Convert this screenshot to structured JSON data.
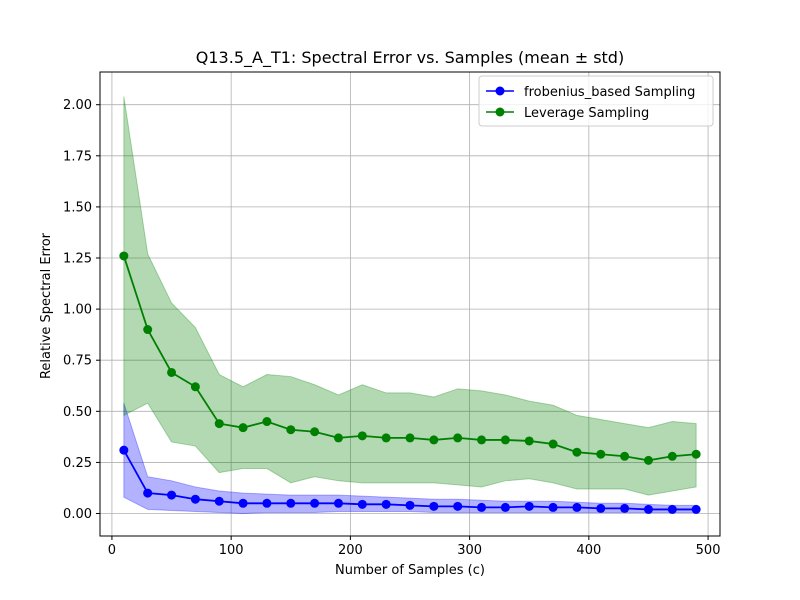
{
  "chart_data": {
    "type": "line",
    "title": "Q13.5_A_T1: Spectral Error vs. Samples (mean ± std)",
    "xlabel": "Number of Samples (c)",
    "ylabel": "Relative Spectral Error",
    "xlim": [
      -10,
      510
    ],
    "ylim": [
      -0.11,
      2.16
    ],
    "xticks": [
      0,
      100,
      200,
      300,
      400,
      500
    ],
    "yticks": [
      0.0,
      0.25,
      0.5,
      0.75,
      1.0,
      1.25,
      1.5,
      1.75,
      2.0
    ],
    "xtick_labels": [
      "0",
      "100",
      "200",
      "300",
      "400",
      "500"
    ],
    "ytick_labels": [
      "0.00",
      "0.25",
      "0.50",
      "0.75",
      "1.00",
      "1.25",
      "1.50",
      "1.75",
      "2.00"
    ],
    "grid": true,
    "legend_position": "top-right",
    "x": [
      10,
      30,
      50,
      70,
      90,
      110,
      130,
      150,
      170,
      190,
      210,
      230,
      250,
      270,
      290,
      310,
      330,
      350,
      370,
      390,
      410,
      430,
      450,
      470,
      490
    ],
    "series": [
      {
        "name": "frobenius_based Sampling",
        "color": "#0000ff",
        "fill_color": "#0000ff",
        "mean": [
          0.31,
          0.1,
          0.09,
          0.07,
          0.06,
          0.05,
          0.05,
          0.05,
          0.05,
          0.05,
          0.045,
          0.045,
          0.04,
          0.035,
          0.035,
          0.03,
          0.03,
          0.035,
          0.03,
          0.03,
          0.025,
          0.025,
          0.02,
          0.02,
          0.02
        ],
        "lower": [
          0.08,
          0.02,
          0.015,
          0.01,
          0.005,
          0.0,
          0.005,
          0.005,
          0.005,
          0.01,
          0.01,
          0.01,
          0.01,
          0.005,
          0.005,
          0.005,
          0.005,
          0.005,
          0.005,
          0.005,
          0.005,
          0.005,
          0.005,
          0.005,
          0.005
        ],
        "upper": [
          0.54,
          0.18,
          0.16,
          0.13,
          0.11,
          0.1,
          0.095,
          0.09,
          0.09,
          0.09,
          0.085,
          0.08,
          0.075,
          0.07,
          0.07,
          0.065,
          0.06,
          0.06,
          0.06,
          0.055,
          0.05,
          0.05,
          0.045,
          0.04,
          0.04
        ]
      },
      {
        "name": "Leverage Sampling",
        "color": "#008000",
        "fill_color": "#008000",
        "mean": [
          1.26,
          0.9,
          0.69,
          0.62,
          0.44,
          0.42,
          0.45,
          0.41,
          0.4,
          0.37,
          0.38,
          0.37,
          0.37,
          0.36,
          0.37,
          0.36,
          0.36,
          0.355,
          0.34,
          0.3,
          0.29,
          0.28,
          0.26,
          0.28,
          0.29
        ],
        "lower": [
          0.48,
          0.54,
          0.35,
          0.33,
          0.2,
          0.22,
          0.22,
          0.15,
          0.18,
          0.16,
          0.15,
          0.15,
          0.15,
          0.15,
          0.14,
          0.13,
          0.16,
          0.17,
          0.15,
          0.12,
          0.12,
          0.12,
          0.09,
          0.11,
          0.13
        ],
        "upper": [
          2.04,
          1.27,
          1.03,
          0.91,
          0.68,
          0.62,
          0.68,
          0.67,
          0.63,
          0.58,
          0.63,
          0.59,
          0.59,
          0.57,
          0.61,
          0.6,
          0.58,
          0.55,
          0.53,
          0.48,
          0.46,
          0.44,
          0.42,
          0.45,
          0.44
        ]
      }
    ]
  }
}
